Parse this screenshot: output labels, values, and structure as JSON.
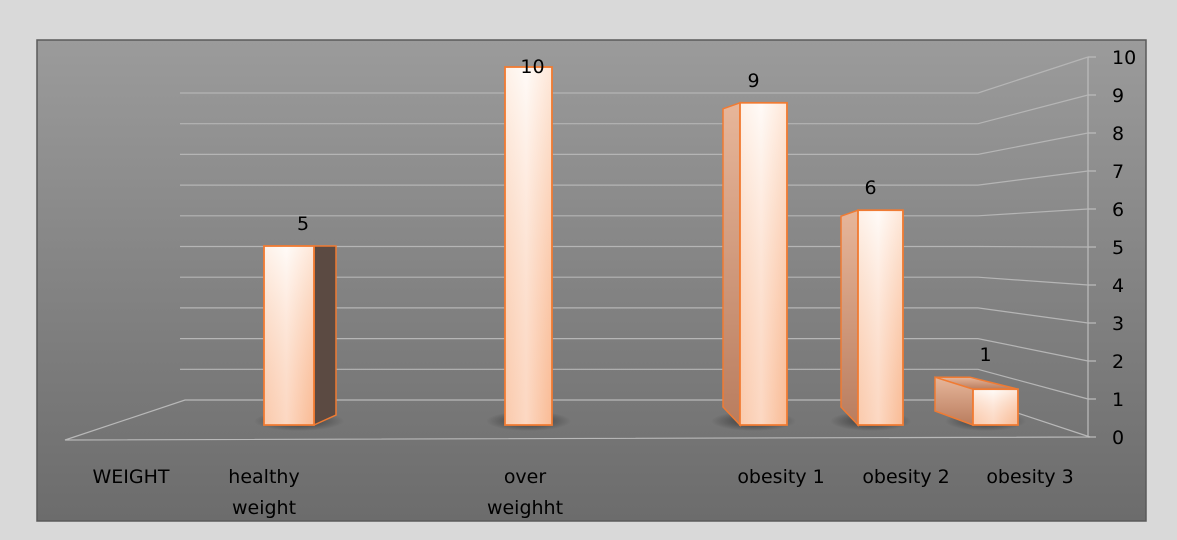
{
  "chart_data": {
    "type": "bar",
    "categories": [
      "WEIGHT",
      "healthy weight",
      "over weighht",
      "obesity 1",
      "obesity 2",
      "obesity 3"
    ],
    "category_lines": [
      [
        "WEIGHT"
      ],
      [
        "healthy",
        "weight"
      ],
      [
        "over",
        "weighht"
      ],
      [
        "obesity 1"
      ],
      [
        "obesity 2"
      ],
      [
        "obesity 3"
      ]
    ],
    "values": [
      null,
      5,
      10,
      9,
      6,
      1
    ],
    "ylim": [
      0,
      10
    ],
    "yticks": [
      0,
      1,
      2,
      3,
      4,
      5,
      6,
      7,
      8,
      9,
      10
    ],
    "y_axis_side": "right",
    "grid": true,
    "style": "3d-perspective",
    "colors": {
      "background_outer": "#d9d9d9",
      "plot_top": "#9a9a9a",
      "plot_bottom": "#6e6e6e",
      "bar_outline": "#f07b33",
      "bar_light": "#fff3ea",
      "bar_mid": "#fdd3b8",
      "bar_dark": "#f6a77b",
      "gridline": "#b5b5b5"
    }
  }
}
